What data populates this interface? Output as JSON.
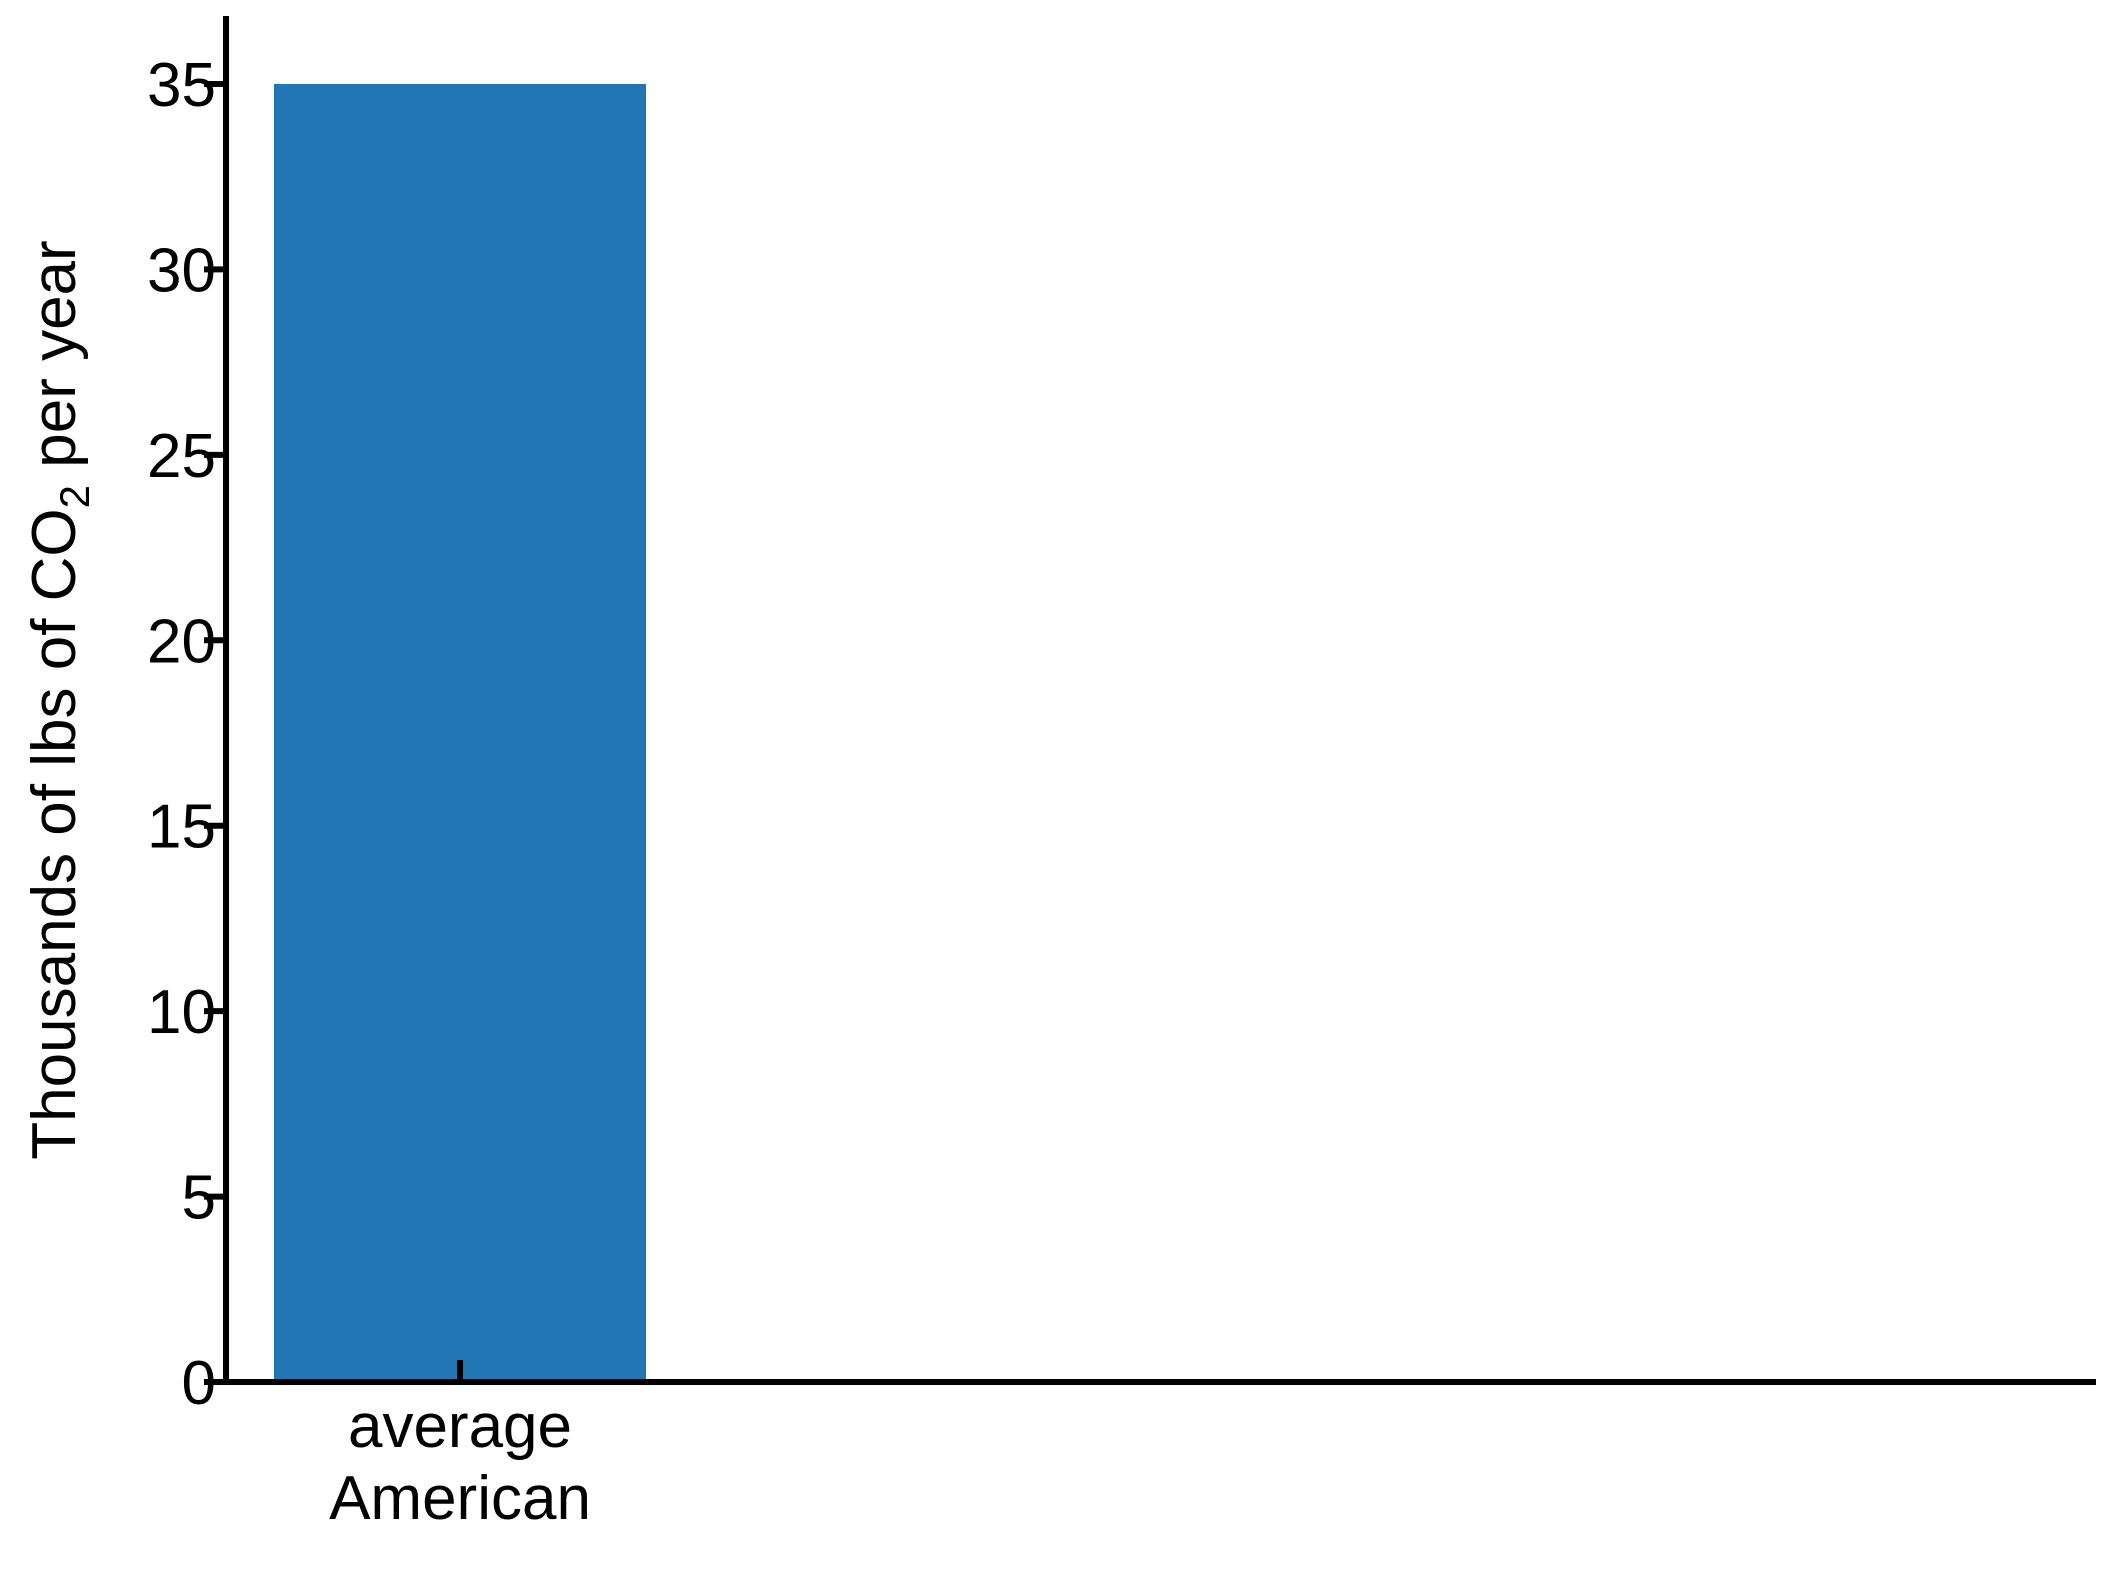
{
  "chart_data": {
    "type": "bar",
    "title": "",
    "categories": [
      "average\nAmerican"
    ],
    "values": [
      35
    ],
    "ylim": [
      0,
      37
    ],
    "yticks": [
      0,
      5,
      10,
      15,
      20,
      25,
      30,
      35
    ],
    "ylabel": {
      "prefix": "Thousands of lbs of CO",
      "subscript": "2",
      "suffix": " per year"
    },
    "xlabel": "",
    "grid": false,
    "legend": "none",
    "colors": {
      "bar": "#2077b4",
      "axis": "#000000"
    }
  }
}
